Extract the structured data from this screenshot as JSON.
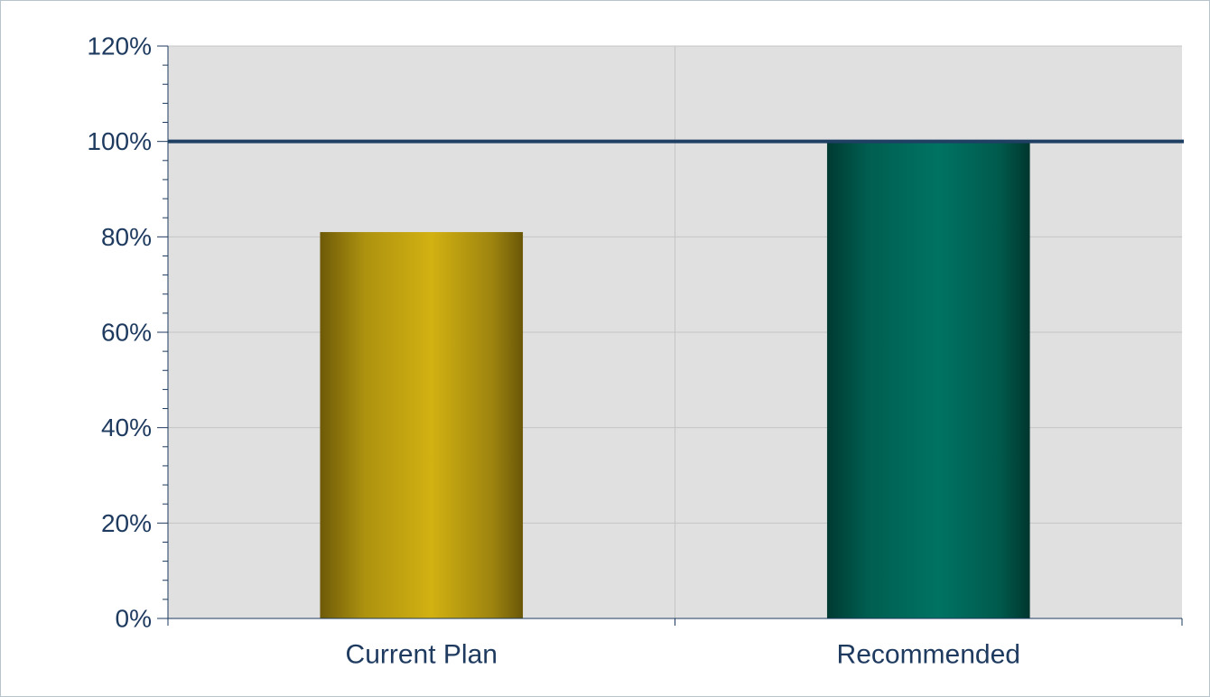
{
  "chart_data": {
    "type": "bar",
    "categories": [
      "Current Plan",
      "Recommended"
    ],
    "values": [
      81,
      100
    ],
    "bar_colors": [
      "#c9a80f",
      "#006b5a"
    ],
    "ylim": [
      0,
      120
    ],
    "yticks": [
      0,
      20,
      40,
      60,
      80,
      100,
      120
    ],
    "ytick_labels": [
      "0%",
      "20%",
      "40%",
      "60%",
      "80%",
      "100%",
      "120%"
    ],
    "reference_line": {
      "value": 100,
      "color": "#1f3f63"
    },
    "plot_background": "#e0e0e0",
    "grid": true,
    "legend": "none",
    "title": "",
    "xlabel": "",
    "ylabel": ""
  }
}
